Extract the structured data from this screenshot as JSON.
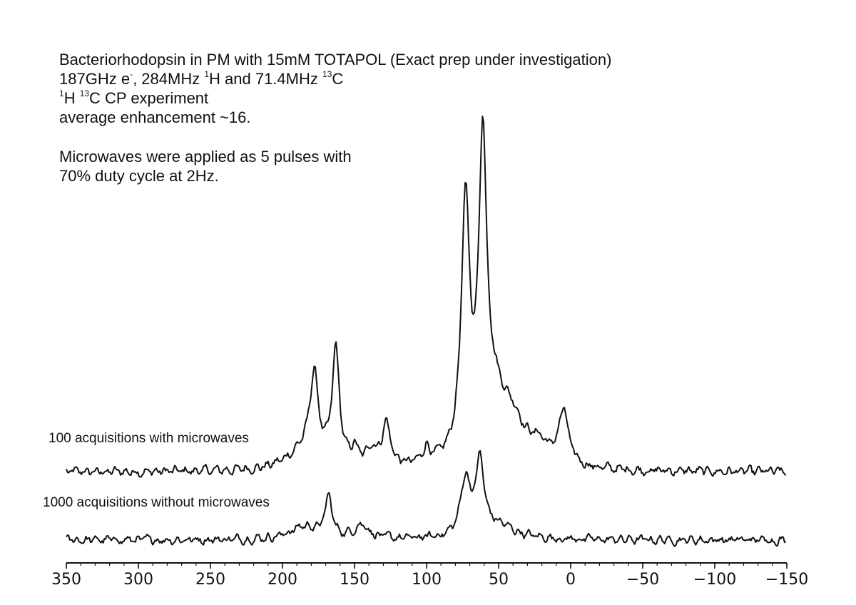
{
  "header": {
    "line1": "Bacteriorhodopsin in PM with 15mM TOTAPOL (Exact prep under investigation)",
    "line2_a": "187GHz e",
    "line2_sup_a": "-",
    "line2_b": ", 284MHz ",
    "line2_sup_b": "1",
    "line2_c": "H and 71.4MHz ",
    "line2_sup_c": "13",
    "line2_d": "C",
    "line3_sup_a": "1",
    "line3_a": "H ",
    "line3_sup_b": "13",
    "line3_b": "C CP experiment",
    "line4": "average enhancement ~16.",
    "line5": "Microwaves were applied as 5 pulses with",
    "line6": "70% duty cycle at 2Hz."
  },
  "chart_data": {
    "type": "line",
    "x_reversed": true,
    "xlim": [
      350,
      -150
    ],
    "xticks": [
      350,
      300,
      250,
      200,
      150,
      100,
      50,
      0,
      -50,
      -100,
      -150
    ],
    "xtick_labels": [
      "350",
      "300",
      "250",
      "200",
      "150",
      "100",
      "50",
      "0",
      "−50",
      "−100",
      "−150"
    ],
    "grid": false,
    "series": [
      {
        "name": "100 acquisitions with microwaves",
        "baseline": 0,
        "peaks": [
          {
            "x": 178,
            "height": 115,
            "width": 3.5
          },
          {
            "x": 163,
            "height": 160,
            "width": 3.0
          },
          {
            "x": 150,
            "height": 22,
            "width": 3.0
          },
          {
            "x": 138,
            "height": 25,
            "width": 4.0
          },
          {
            "x": 128,
            "height": 60,
            "width": 3.5
          },
          {
            "x": 100,
            "height": 22,
            "width": 3.0
          },
          {
            "x": 73,
            "height": 345,
            "width": 3.5
          },
          {
            "x": 61,
            "height": 400,
            "width": 3.2
          },
          {
            "x": 54,
            "height": 90,
            "width": 12.0
          },
          {
            "x": 40,
            "height": 45,
            "width": 10.0
          },
          {
            "x": 5,
            "height": 75,
            "width": 4.0
          },
          {
            "x": 22,
            "height": 25,
            "width": 8.0
          },
          {
            "x": 185,
            "height": 28,
            "width": 14.0
          }
        ],
        "noise": 10,
        "offset": 172
      },
      {
        "name": "1000 acquisitions without microwaves",
        "baseline": 0,
        "peaks": [
          {
            "x": 168,
            "height": 55,
            "width": 3.0
          },
          {
            "x": 185,
            "height": 18,
            "width": 12.0
          },
          {
            "x": 145,
            "height": 20,
            "width": 6.0
          },
          {
            "x": 73,
            "height": 80,
            "width": 4.0
          },
          {
            "x": 63,
            "height": 100,
            "width": 3.5
          },
          {
            "x": 50,
            "height": 18,
            "width": 14.0
          }
        ],
        "noise": 9,
        "offset": 80
      }
    ]
  }
}
